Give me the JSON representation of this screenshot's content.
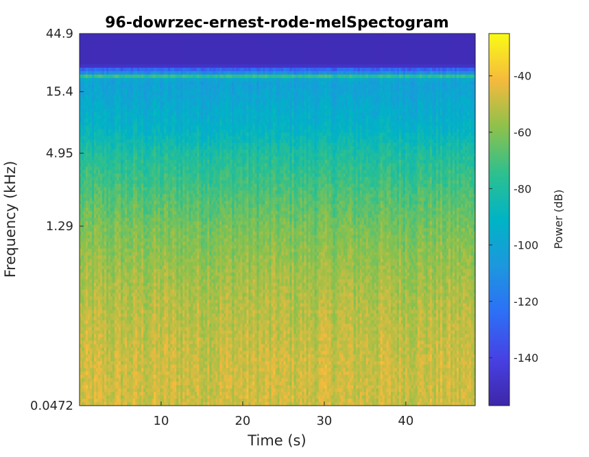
{
  "chart_data": {
    "type": "heatmap",
    "title": "96-dowrzec-ernest-rode-melSpectogram",
    "xlabel": "Time (s)",
    "ylabel": "Frequency (kHz)",
    "xlim": [
      0,
      48.5
    ],
    "x_ticks": [
      10,
      20,
      30,
      40
    ],
    "x_tick_labels": [
      "10",
      "20",
      "30",
      "40"
    ],
    "y_scale": "log",
    "ylim": [
      0.0472,
      44.9
    ],
    "y_ticks": [
      0.0472,
      1.29,
      4.95,
      15.4,
      44.9
    ],
    "y_tick_labels": [
      "0.0472",
      "1.29",
      "4.95",
      "15.4",
      "44.9"
    ],
    "colormap": "parula",
    "colorbar": {
      "label": "Power (dB)",
      "range": [
        -157,
        -25
      ],
      "ticks": [
        -40,
        -60,
        -80,
        -100,
        -120,
        -140
      ],
      "tick_labels": [
        "-40",
        "-60",
        "-80",
        "-100",
        "-120",
        "-140"
      ]
    },
    "power_profile_db": {
      "frequency_khz": [
        0.0472,
        0.1,
        0.3,
        0.6,
        1.29,
        2.5,
        4.95,
        8.0,
        15.4,
        19.0,
        20.5,
        21.5,
        23.0,
        25.0,
        44.9
      ],
      "power_db": [
        -48,
        -48,
        -52,
        -56,
        -62,
        -70,
        -80,
        -92,
        -100,
        -102,
        -75,
        -110,
        -125,
        -153,
        -153
      ]
    }
  }
}
